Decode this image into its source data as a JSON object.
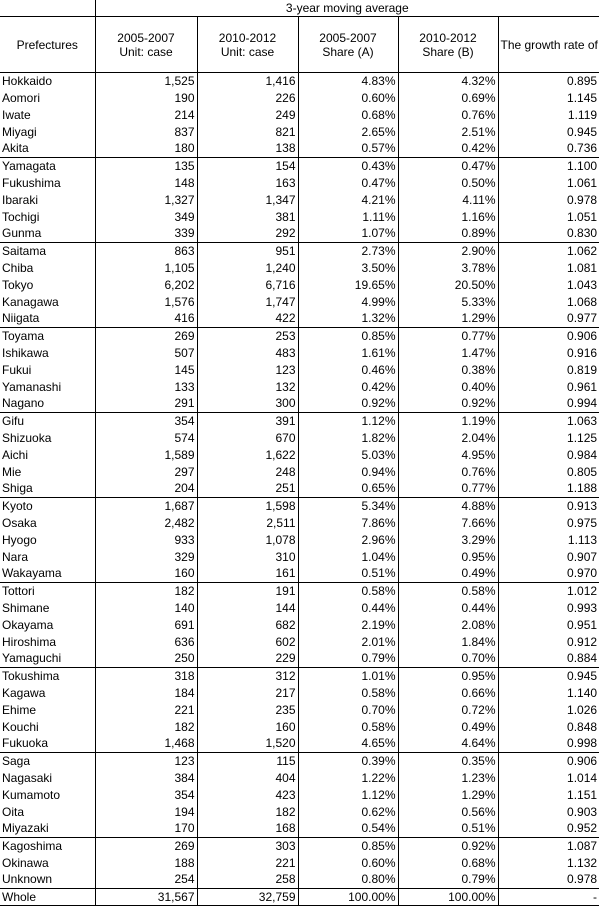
{
  "header": {
    "group_title": "3-year moving average",
    "col_prefecture": "Prefectures",
    "col_count_0507": "2005-2007\nUnit: case",
    "col_count_1012": "2010-2012\nUnit: case",
    "col_share_0507": "2005-2007\nShare (A)",
    "col_share_1012": "2010-2012\nShare (B)",
    "col_growth": "The growth rate of the share (B)/(A)"
  },
  "groups": [
    [
      [
        "Hokkaido",
        "1,525",
        "1,416",
        "4.83%",
        "4.32%",
        "0.895"
      ],
      [
        "Aomori",
        "190",
        "226",
        "0.60%",
        "0.69%",
        "1.145"
      ],
      [
        "Iwate",
        "214",
        "249",
        "0.68%",
        "0.76%",
        "1.119"
      ],
      [
        "Miyagi",
        "837",
        "821",
        "2.65%",
        "2.51%",
        "0.945"
      ],
      [
        "Akita",
        "180",
        "138",
        "0.57%",
        "0.42%",
        "0.736"
      ]
    ],
    [
      [
        "Yamagata",
        "135",
        "154",
        "0.43%",
        "0.47%",
        "1.100"
      ],
      [
        "Fukushima",
        "148",
        "163",
        "0.47%",
        "0.50%",
        "1.061"
      ],
      [
        "Ibaraki",
        "1,327",
        "1,347",
        "4.21%",
        "4.11%",
        "0.978"
      ],
      [
        "Tochigi",
        "349",
        "381",
        "1.11%",
        "1.16%",
        "1.051"
      ],
      [
        "Gunma",
        "339",
        "292",
        "1.07%",
        "0.89%",
        "0.830"
      ]
    ],
    [
      [
        "Saitama",
        "863",
        "951",
        "2.73%",
        "2.90%",
        "1.062"
      ],
      [
        "Chiba",
        "1,105",
        "1,240",
        "3.50%",
        "3.78%",
        "1.081"
      ],
      [
        "Tokyo",
        "6,202",
        "6,716",
        "19.65%",
        "20.50%",
        "1.043"
      ],
      [
        "Kanagawa",
        "1,576",
        "1,747",
        "4.99%",
        "5.33%",
        "1.068"
      ],
      [
        "Niigata",
        "416",
        "422",
        "1.32%",
        "1.29%",
        "0.977"
      ]
    ],
    [
      [
        "Toyama",
        "269",
        "253",
        "0.85%",
        "0.77%",
        "0.906"
      ],
      [
        "Ishikawa",
        "507",
        "483",
        "1.61%",
        "1.47%",
        "0.916"
      ],
      [
        "Fukui",
        "145",
        "123",
        "0.46%",
        "0.38%",
        "0.819"
      ],
      [
        "Yamanashi",
        "133",
        "132",
        "0.42%",
        "0.40%",
        "0.961"
      ],
      [
        "Nagano",
        "291",
        "300",
        "0.92%",
        "0.92%",
        "0.994"
      ]
    ],
    [
      [
        "Gifu",
        "354",
        "391",
        "1.12%",
        "1.19%",
        "1.063"
      ],
      [
        "Shizuoka",
        "574",
        "670",
        "1.82%",
        "2.04%",
        "1.125"
      ],
      [
        "Aichi",
        "1,589",
        "1,622",
        "5.03%",
        "4.95%",
        "0.984"
      ],
      [
        "Mie",
        "297",
        "248",
        "0.94%",
        "0.76%",
        "0.805"
      ],
      [
        "Shiga",
        "204",
        "251",
        "0.65%",
        "0.77%",
        "1.188"
      ]
    ],
    [
      [
        "Kyoto",
        "1,687",
        "1,598",
        "5.34%",
        "4.88%",
        "0.913"
      ],
      [
        "Osaka",
        "2,482",
        "2,511",
        "7.86%",
        "7.66%",
        "0.975"
      ],
      [
        "Hyogo",
        "933",
        "1,078",
        "2.96%",
        "3.29%",
        "1.113"
      ],
      [
        "Nara",
        "329",
        "310",
        "1.04%",
        "0.95%",
        "0.907"
      ],
      [
        "Wakayama",
        "160",
        "161",
        "0.51%",
        "0.49%",
        "0.970"
      ]
    ],
    [
      [
        "Tottori",
        "182",
        "191",
        "0.58%",
        "0.58%",
        "1.012"
      ],
      [
        "Shimane",
        "140",
        "144",
        "0.44%",
        "0.44%",
        "0.993"
      ],
      [
        "Okayama",
        "691",
        "682",
        "2.19%",
        "2.08%",
        "0.951"
      ],
      [
        "Hiroshima",
        "636",
        "602",
        "2.01%",
        "1.84%",
        "0.912"
      ],
      [
        "Yamaguchi",
        "250",
        "229",
        "0.79%",
        "0.70%",
        "0.884"
      ]
    ],
    [
      [
        "Tokushima",
        "318",
        "312",
        "1.01%",
        "0.95%",
        "0.945"
      ],
      [
        "Kagawa",
        "184",
        "217",
        "0.58%",
        "0.66%",
        "1.140"
      ],
      [
        "Ehime",
        "221",
        "235",
        "0.70%",
        "0.72%",
        "1.026"
      ],
      [
        "Kouchi",
        "182",
        "160",
        "0.58%",
        "0.49%",
        "0.848"
      ],
      [
        "Fukuoka",
        "1,468",
        "1,520",
        "4.65%",
        "4.64%",
        "0.998"
      ]
    ],
    [
      [
        "Saga",
        "123",
        "115",
        "0.39%",
        "0.35%",
        "0.906"
      ],
      [
        "Nagasaki",
        "384",
        "404",
        "1.22%",
        "1.23%",
        "1.014"
      ],
      [
        "Kumamoto",
        "354",
        "423",
        "1.12%",
        "1.29%",
        "1.151"
      ],
      [
        "Oita",
        "194",
        "182",
        "0.62%",
        "0.56%",
        "0.903"
      ],
      [
        "Miyazaki",
        "170",
        "168",
        "0.54%",
        "0.51%",
        "0.952"
      ]
    ],
    [
      [
        "Kagoshima",
        "269",
        "303",
        "0.85%",
        "0.92%",
        "1.087"
      ],
      [
        "Okinawa",
        "188",
        "221",
        "0.60%",
        "0.68%",
        "1.132"
      ],
      [
        "Unknown",
        "254",
        "258",
        "0.80%",
        "0.79%",
        "0.978"
      ]
    ]
  ],
  "total": [
    "Whole",
    "31,567",
    "32,759",
    "100.00%",
    "100.00%",
    "-"
  ]
}
